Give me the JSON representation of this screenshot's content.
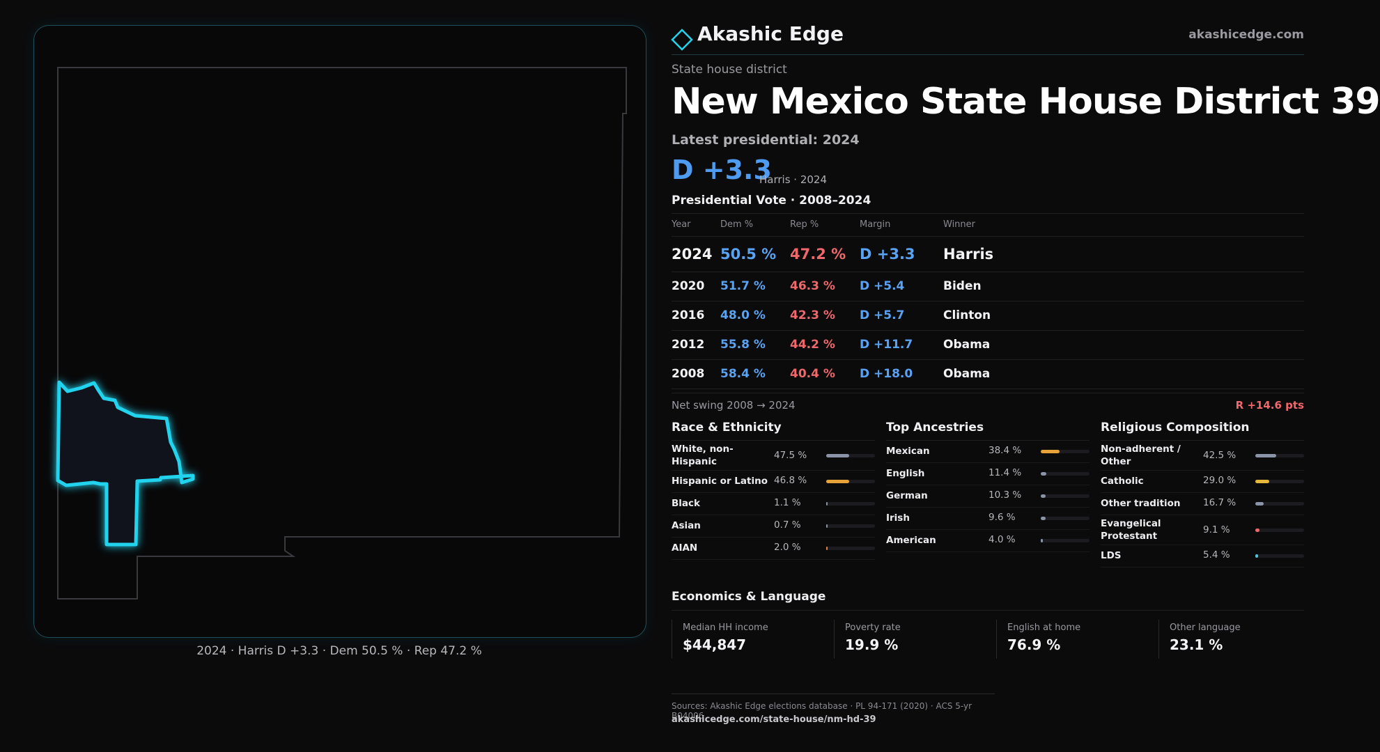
{
  "map": {
    "caption": "2024 · Harris D +3.3 · Dem 50.5 % · Rep 47.2 %",
    "highlight_color": "#22d3ee",
    "outline_color": "#3a3a3e"
  },
  "header": {
    "brand_name": "Akashic Edge",
    "brand_url": "akashicedge.com",
    "logo_icon": "diamond-icon",
    "accent": "#22d3ee"
  },
  "district": {
    "kicker": "State house district",
    "title": "New Mexico State House District 39",
    "latest_label": "Latest presidential: 2024",
    "margin": "D +3.3",
    "margin_sub": "Harris · 2024"
  },
  "presidential": {
    "title": "Presidential Vote · 2008–2024",
    "headers": {
      "year": "Year",
      "dem": "Dem %",
      "rep": "Rep %",
      "margin": "Margin",
      "winner": "Winner"
    },
    "rows": [
      {
        "year": "2024",
        "dem": "50.5 %",
        "rep": "47.2 %",
        "margin": "D +3.3",
        "winner": "Harris"
      },
      {
        "year": "2020",
        "dem": "51.7 %",
        "rep": "46.3 %",
        "margin": "D +5.4",
        "winner": "Biden"
      },
      {
        "year": "2016",
        "dem": "48.0 %",
        "rep": "42.3 %",
        "margin": "D +5.7",
        "winner": "Clinton"
      },
      {
        "year": "2012",
        "dem": "55.8 %",
        "rep": "44.2 %",
        "margin": "D +11.7",
        "winner": "Obama"
      },
      {
        "year": "2008",
        "dem": "58.4 %",
        "rep": "40.4 %",
        "margin": "D +18.0",
        "winner": "Obama"
      }
    ],
    "swing_label": "Net swing 2008 → 2024",
    "swing_value": "R +14.6 pts"
  },
  "race": {
    "title": "Race & Ethnicity",
    "rows": [
      {
        "label": "White, non-\nHispanic",
        "value": "47.5 %",
        "fraction": 0.475,
        "color": "#8a94a6"
      },
      {
        "label": "Hispanic or Latino",
        "value": "46.8 %",
        "fraction": 0.468,
        "color": "#e8a23a"
      },
      {
        "label": "Black",
        "value": "1.1 %",
        "fraction": 0.011,
        "color": "#8a94a6"
      },
      {
        "label": "Asian",
        "value": "0.7 %",
        "fraction": 0.007,
        "color": "#8a94a6"
      },
      {
        "label": "AIAN",
        "value": "2.0 %",
        "fraction": 0.02,
        "color": "#e8823a"
      }
    ]
  },
  "ancestry": {
    "title": "Top Ancestries",
    "rows": [
      {
        "label": "Mexican",
        "value": "38.4 %",
        "fraction": 0.384,
        "color": "#e8a23a"
      },
      {
        "label": "English",
        "value": "11.4 %",
        "fraction": 0.114,
        "color": "#8a94a6"
      },
      {
        "label": "German",
        "value": "10.3 %",
        "fraction": 0.103,
        "color": "#8a94a6"
      },
      {
        "label": "Irish",
        "value": "9.6 %",
        "fraction": 0.096,
        "color": "#8a94a6"
      },
      {
        "label": "American",
        "value": "4.0 %",
        "fraction": 0.04,
        "color": "#8a94a6"
      }
    ]
  },
  "religion": {
    "title": "Religious Composition",
    "rows": [
      {
        "label": "Non-adherent /\nOther",
        "value": "42.5 %",
        "fraction": 0.425,
        "color": "#8a94a6"
      },
      {
        "label": "Catholic",
        "value": "29.0 %",
        "fraction": 0.29,
        "color": "#e8b83a"
      },
      {
        "label": "Other tradition",
        "value": "16.7 %",
        "fraction": 0.167,
        "color": "#8a94a6"
      },
      {
        "label": "Evangelical\nProtestant",
        "value": "9.1 %",
        "fraction": 0.091,
        "color": "#f0686b"
      },
      {
        "label": "LDS",
        "value": "5.4 %",
        "fraction": 0.054,
        "color": "#4fc3d8"
      }
    ]
  },
  "economics": {
    "title": "Economics & Language",
    "stats": [
      {
        "label": "Median HH income",
        "value": "$44,847"
      },
      {
        "label": "Poverty rate",
        "value": "19.9 %"
      },
      {
        "label": "English at home",
        "value": "76.9 %"
      },
      {
        "label": "Other language",
        "value": "23.1 %"
      }
    ]
  },
  "footer": {
    "sources": "Sources: Akashic Edge elections database · PL 94-171 (2020) · ACS 5-yr B04006",
    "url": "akashicedge.com/state-house/nm-hd-39"
  }
}
